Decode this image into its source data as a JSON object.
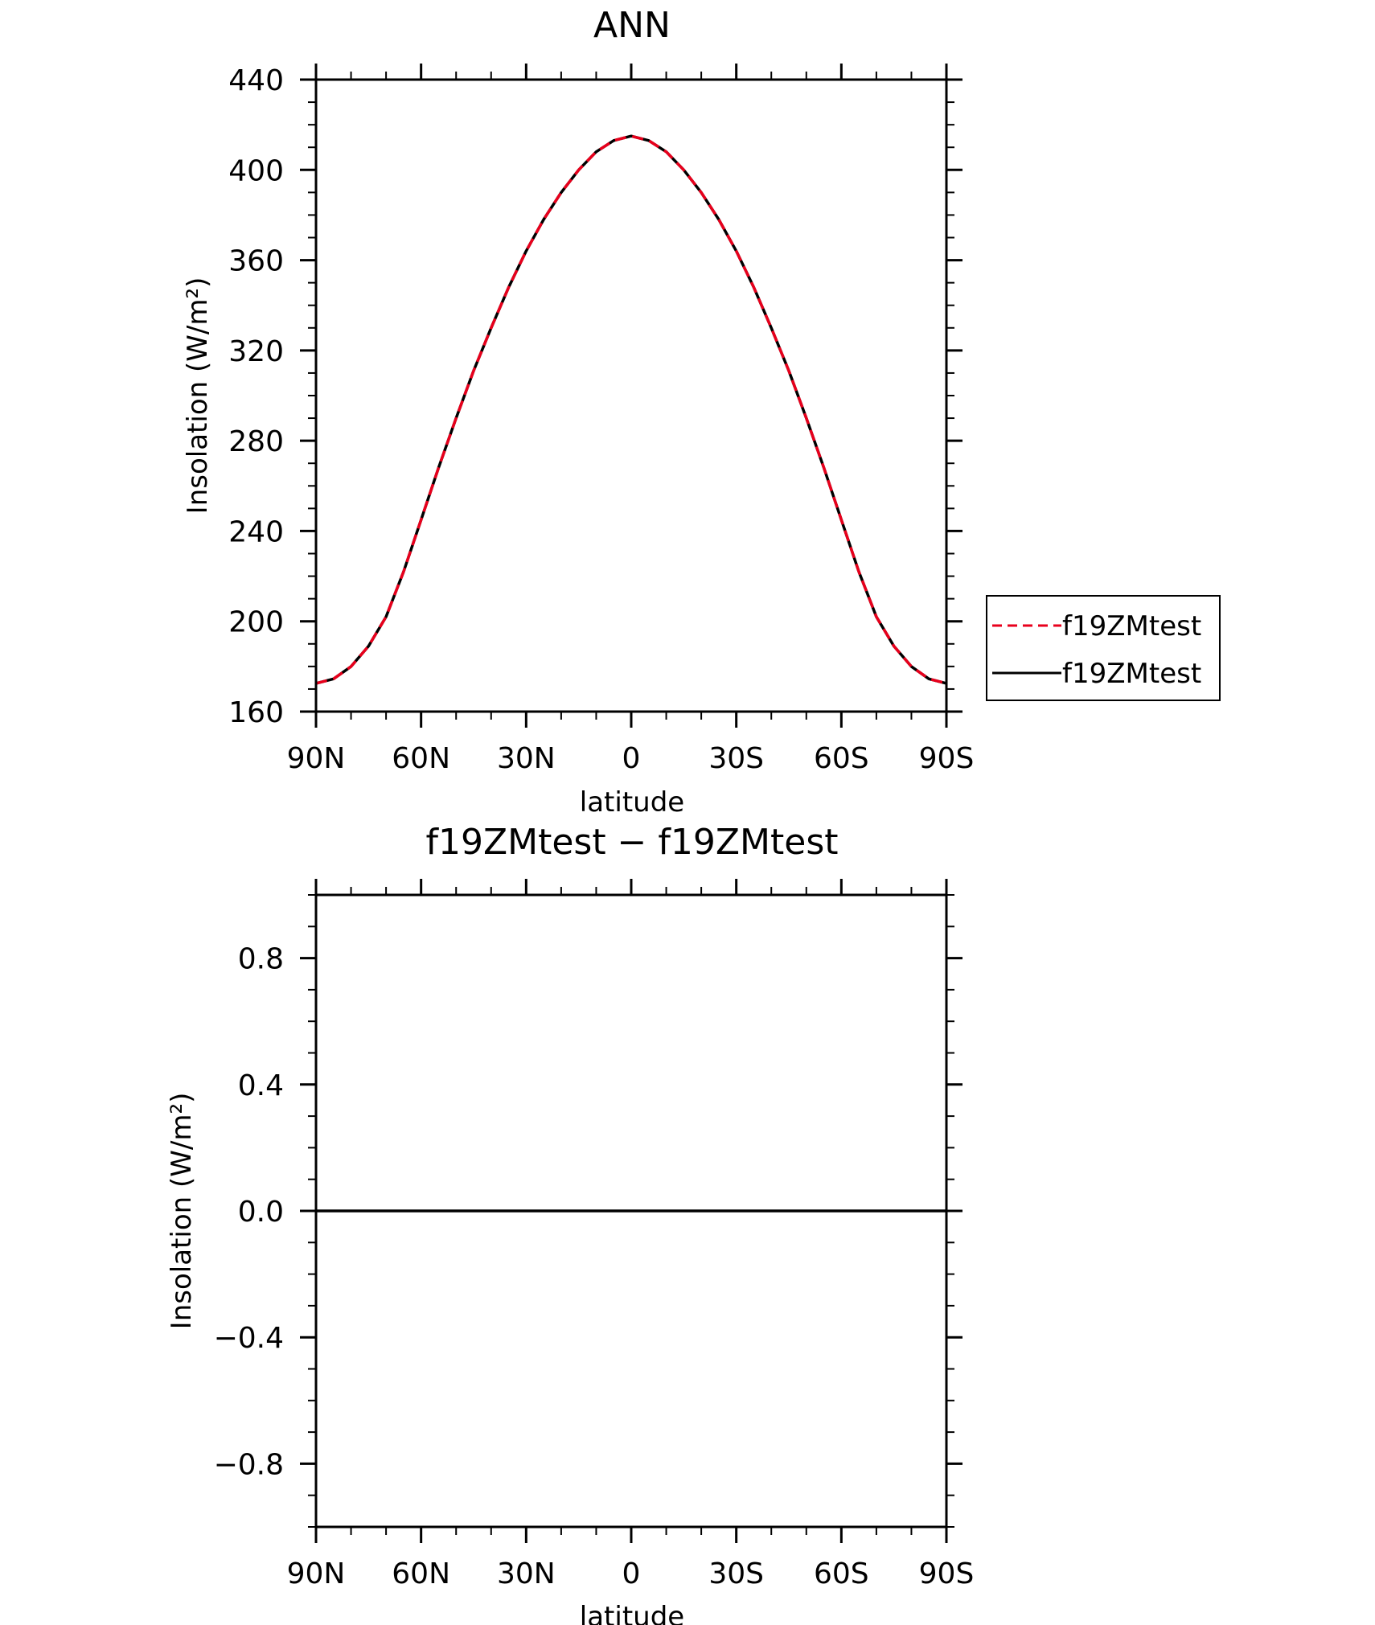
{
  "chart_data": [
    {
      "type": "line",
      "title": "ANN",
      "xlabel": "latitude",
      "ylabel": "Insolation (W/m²)",
      "ylim": [
        160,
        440
      ],
      "xlim": [
        90,
        -90
      ],
      "x_tick_values": [
        90,
        60,
        30,
        0,
        -30,
        -60,
        -90
      ],
      "x_tick_labels": [
        "90N",
        "60N",
        "30N",
        "0",
        "30S",
        "60S",
        "90S"
      ],
      "y_tick_values": [
        160,
        200,
        240,
        280,
        320,
        360,
        400,
        440
      ],
      "y_tick_labels": [
        "160",
        "200",
        "240",
        "280",
        "320",
        "360",
        "400",
        "440"
      ],
      "grid": false,
      "legend_position": "right",
      "x": [
        90,
        85,
        80,
        75,
        70,
        65,
        60,
        55,
        50,
        45,
        40,
        35,
        30,
        25,
        20,
        15,
        10,
        5,
        0,
        -5,
        -10,
        -15,
        -20,
        -25,
        -30,
        -35,
        -40,
        -45,
        -50,
        -55,
        -60,
        -65,
        -70,
        -75,
        -80,
        -85,
        -90
      ],
      "series": [
        {
          "name": "f19ZMtest",
          "color": "#e8001c",
          "dash": "dashed",
          "values": [
            172.5,
            174.5,
            180,
            189,
            202,
            222,
            245,
            268,
            290,
            311,
            330,
            348,
            364,
            378,
            390,
            400,
            408,
            413,
            415,
            413,
            408,
            400,
            390,
            378,
            364,
            348,
            330,
            311,
            290,
            268,
            245,
            222,
            202,
            189,
            180,
            174.5,
            172.5
          ]
        },
        {
          "name": "f19ZMtest",
          "color": "#000000",
          "dash": "solid",
          "values": [
            172.5,
            174.5,
            180,
            189,
            202,
            222,
            245,
            268,
            290,
            311,
            330,
            348,
            364,
            378,
            390,
            400,
            408,
            413,
            415,
            413,
            408,
            400,
            390,
            378,
            364,
            348,
            330,
            311,
            290,
            268,
            245,
            222,
            202,
            189,
            180,
            174.5,
            172.5
          ]
        }
      ]
    },
    {
      "type": "line",
      "title": "f19ZMtest − f19ZMtest",
      "xlabel": "latitude",
      "ylabel": "Insolation (W/m²)",
      "ylim": [
        -1,
        1
      ],
      "xlim": [
        90,
        -90
      ],
      "x_tick_values": [
        90,
        60,
        30,
        0,
        -30,
        -60,
        -90
      ],
      "x_tick_labels": [
        "90N",
        "60N",
        "30N",
        "0",
        "30S",
        "60S",
        "90S"
      ],
      "y_tick_values": [
        -0.8,
        -0.4,
        0,
        0.4,
        0.8
      ],
      "y_tick_labels": [
        "−0.8",
        "−0.4",
        "0.0",
        "0.4",
        "0.8"
      ],
      "grid": false,
      "x": [
        90,
        -90
      ],
      "series": [
        {
          "color": "#000000",
          "dash": "solid",
          "values": [
            0,
            0
          ]
        }
      ]
    }
  ]
}
